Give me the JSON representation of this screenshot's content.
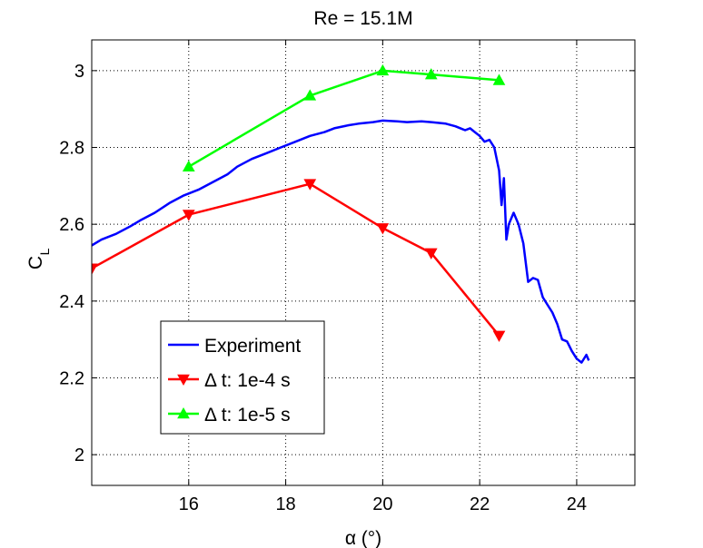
{
  "chart_data": {
    "type": "line",
    "title": "Re = 15.1M",
    "xlabel": "α (°)",
    "ylabel_main": "C",
    "ylabel_sub": "L",
    "xlim": [
      14,
      25.2
    ],
    "ylim": [
      1.92,
      3.08
    ],
    "xticks": [
      16,
      18,
      20,
      22,
      24
    ],
    "yticks": [
      2,
      2.2,
      2.4,
      2.6,
      2.8,
      3
    ],
    "xtick_labels": [
      "16",
      "18",
      "20",
      "22",
      "24"
    ],
    "ytick_labels": [
      "2",
      "2.2",
      "2.4",
      "2.6",
      "2.8",
      "3"
    ],
    "grid": true,
    "legend_position": "lower-left",
    "series": [
      {
        "name": "Experiment",
        "color": "#0000ff",
        "marker": "none",
        "x": [
          14.0,
          14.2,
          14.5,
          14.8,
          15.0,
          15.3,
          15.6,
          15.9,
          16.2,
          16.5,
          16.8,
          17.0,
          17.3,
          17.6,
          17.9,
          18.2,
          18.5,
          18.8,
          19.0,
          19.3,
          19.5,
          19.8,
          20.0,
          20.3,
          20.5,
          20.8,
          21.0,
          21.3,
          21.5,
          21.7,
          21.8,
          21.9,
          22.0,
          22.1,
          22.2,
          22.3,
          22.4,
          22.45,
          22.5,
          22.55,
          22.6,
          22.7,
          22.8,
          22.9,
          23.0,
          23.1,
          23.2,
          23.3,
          23.4,
          23.5,
          23.6,
          23.7,
          23.8,
          23.9,
          24.0,
          24.1,
          24.2,
          24.25
        ],
        "y": [
          2.545,
          2.56,
          2.575,
          2.595,
          2.61,
          2.63,
          2.655,
          2.675,
          2.69,
          2.71,
          2.73,
          2.75,
          2.77,
          2.785,
          2.8,
          2.815,
          2.83,
          2.84,
          2.85,
          2.858,
          2.862,
          2.866,
          2.87,
          2.868,
          2.866,
          2.868,
          2.866,
          2.862,
          2.855,
          2.845,
          2.85,
          2.84,
          2.83,
          2.815,
          2.82,
          2.8,
          2.74,
          2.65,
          2.72,
          2.56,
          2.6,
          2.63,
          2.6,
          2.55,
          2.45,
          2.46,
          2.455,
          2.41,
          2.39,
          2.37,
          2.34,
          2.3,
          2.295,
          2.27,
          2.25,
          2.24,
          2.26,
          2.245
        ]
      },
      {
        "name": "Δ t: 1e-4 s",
        "color": "#ff0000",
        "marker": "triangle-down",
        "x": [
          14.0,
          16.0,
          18.5,
          20.0,
          21.0,
          22.4
        ],
        "y": [
          2.485,
          2.625,
          2.705,
          2.59,
          2.525,
          2.31
        ]
      },
      {
        "name": "Δ t: 1e-5 s",
        "color": "#00ff00",
        "marker": "triangle-up",
        "x": [
          16.0,
          18.5,
          20.0,
          21.0,
          22.4
        ],
        "y": [
          2.75,
          2.935,
          3.0,
          2.99,
          2.975
        ]
      }
    ]
  }
}
